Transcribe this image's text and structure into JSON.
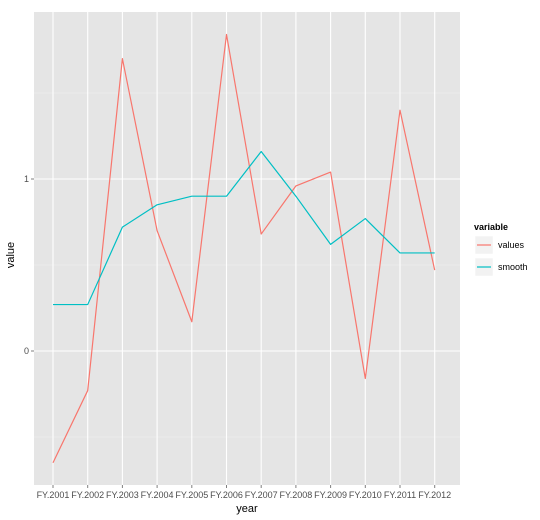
{
  "chart_data": {
    "type": "line",
    "xlabel": "year",
    "ylabel": "value",
    "categories": [
      "FY.2001",
      "FY.2002",
      "FY.2003",
      "FY.2004",
      "FY.2005",
      "FY.2006",
      "FY.2007",
      "FY.2008",
      "FY.2009",
      "FY.2010",
      "FY.2011",
      "FY.2012"
    ],
    "y_ticks": [
      0,
      1
    ],
    "ylim": [
      -0.75,
      1.95
    ],
    "grid": true,
    "background": "#e5e5e5",
    "legend": {
      "title": "variable",
      "position": "right"
    },
    "series": [
      {
        "name": "values",
        "color": "#f8766d",
        "values": [
          -0.65,
          -0.23,
          1.7,
          0.7,
          0.17,
          1.84,
          0.68,
          0.96,
          1.04,
          -0.16,
          1.4,
          0.47
        ]
      },
      {
        "name": "smooth",
        "color": "#00bfc4",
        "values": [
          0.27,
          0.27,
          0.72,
          0.85,
          0.9,
          0.9,
          1.16,
          0.9,
          0.62,
          0.77,
          0.57,
          0.57
        ]
      }
    ]
  }
}
